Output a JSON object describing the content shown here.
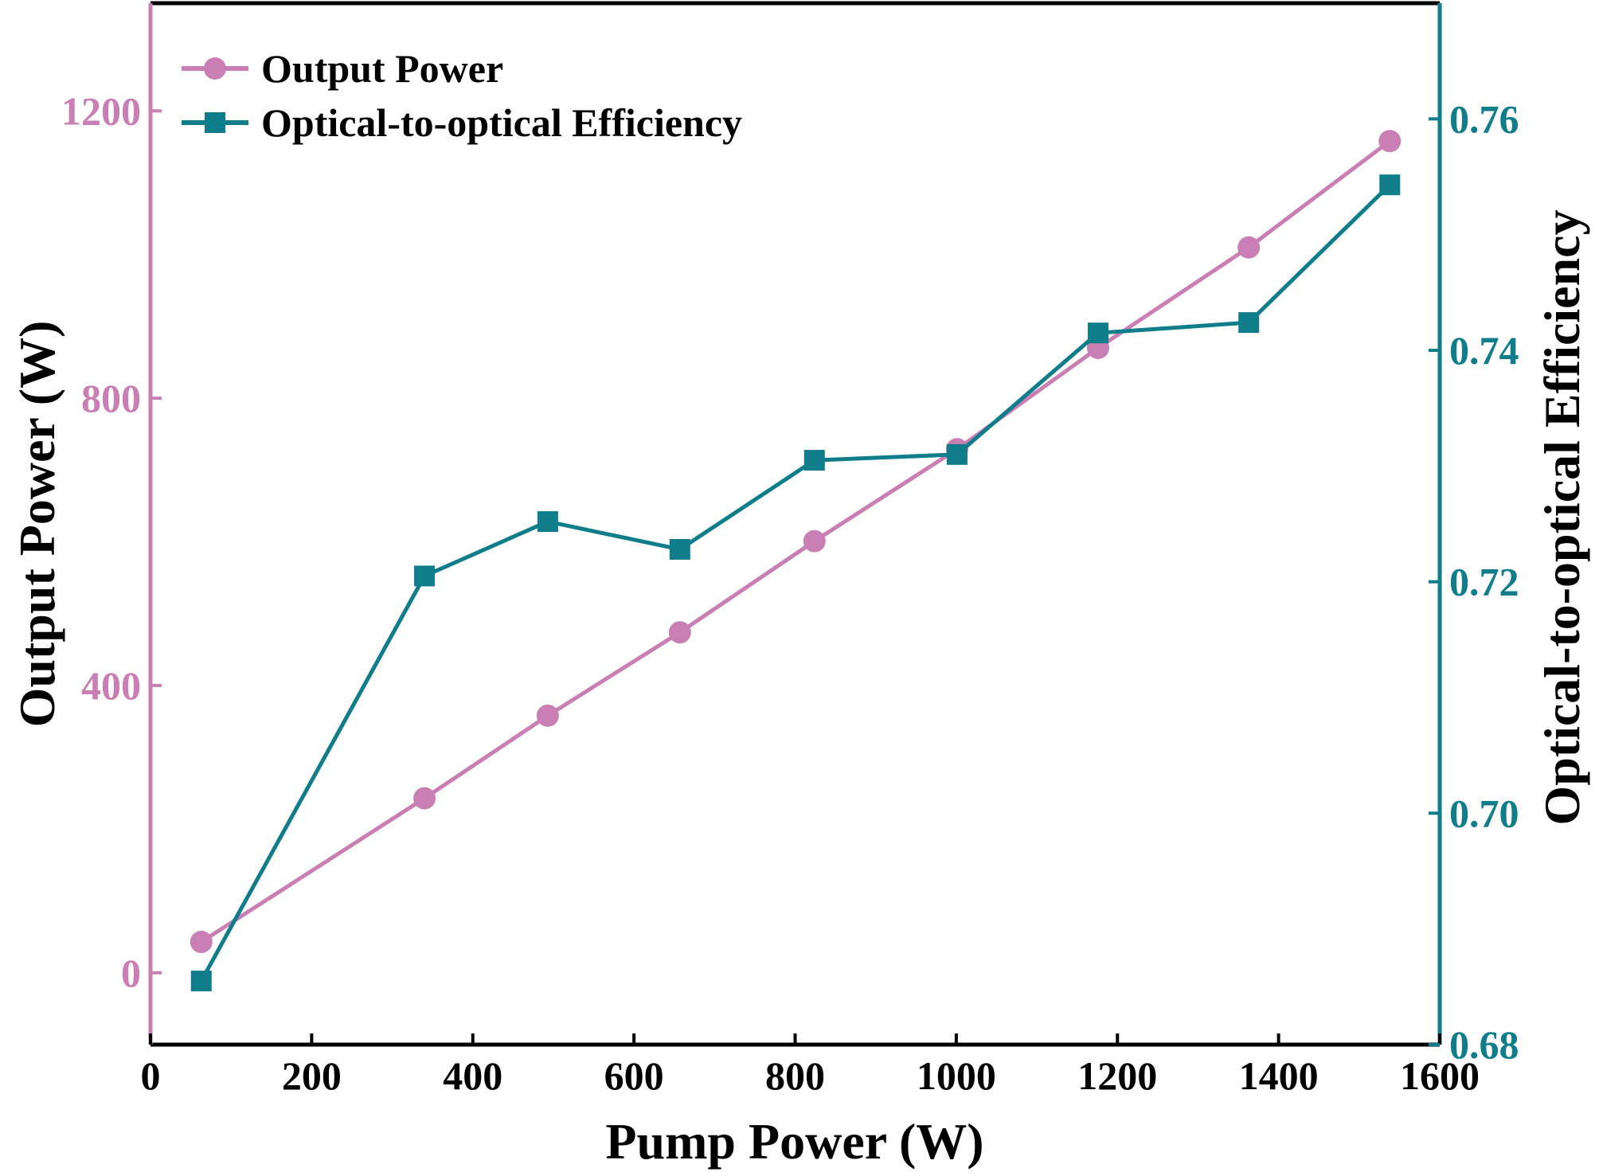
{
  "chart_data": {
    "type": "line",
    "title": "",
    "xlabel": "Pump Power (W)",
    "ylabel_left": "Output Power (W)",
    "ylabel_right": "Optical-to-optical Efficiency",
    "xlim": [
      0,
      1600
    ],
    "ylim_left": [
      -100,
      1350
    ],
    "ylim_right": [
      0.68,
      0.77
    ],
    "x_ticks": [
      0,
      200,
      400,
      600,
      800,
      1000,
      1200,
      1400,
      1600
    ],
    "y_left_ticks": [
      0,
      400,
      800,
      1200
    ],
    "y_right_ticks": [
      "0.68",
      "0.70",
      "0.72",
      "0.74",
      "0.76"
    ],
    "grid": false,
    "legend_position": "top-left",
    "colors": {
      "left_axis": "#c97fb3",
      "right_axis": "#0f7d8a",
      "frame": "#000000"
    },
    "series": [
      {
        "name": "Output Power",
        "axis": "left",
        "marker": "circle",
        "color": "#c97fb3",
        "x": [
          63,
          340,
          493,
          657,
          824,
          1001,
          1176,
          1363,
          1538
        ],
        "values": [
          43,
          243,
          358,
          474,
          601,
          729,
          870,
          1010,
          1158
        ]
      },
      {
        "name": "Optical-to-optical Efficiency",
        "axis": "right",
        "marker": "square",
        "color": "#0f7d8a",
        "x": [
          63,
          340,
          493,
          657,
          824,
          1001,
          1176,
          1363,
          1538
        ],
        "values": [
          0.6855,
          0.7205,
          0.7252,
          0.7228,
          0.7305,
          0.731,
          0.7415,
          0.7424,
          0.7543
        ]
      }
    ]
  }
}
